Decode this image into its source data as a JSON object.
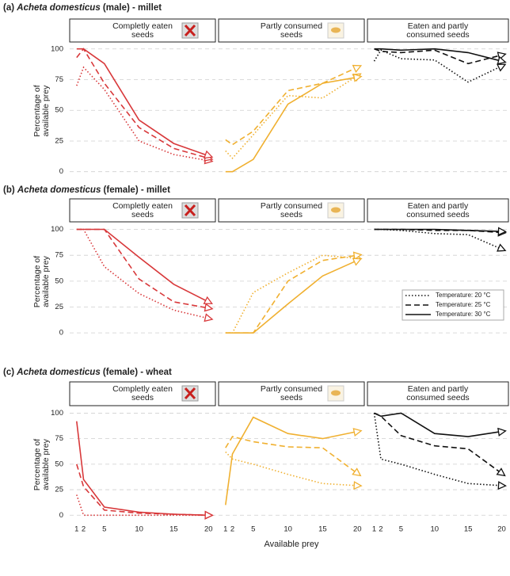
{
  "chart_data": [
    {
      "type": "line",
      "row_title": {
        "label": "(a)",
        "species": "Acheta domesticus",
        "rest": "(male) - millet"
      },
      "ylabel": [
        "Percentage of",
        "available prey"
      ],
      "title": [
        "Completly eaten",
        "seeds"
      ],
      "x": [
        1,
        2,
        5,
        10,
        15,
        20
      ],
      "xlim": [
        0,
        21
      ],
      "ylim": [
        -6,
        105
      ],
      "yticks": [
        0,
        25,
        50,
        75,
        100
      ],
      "ytick_labels": true,
      "grid": true,
      "series": [
        {
          "color": "#d8383a",
          "dash": "dotted",
          "values": [
            70,
            85,
            67,
            25,
            14,
            9
          ]
        },
        {
          "color": "#d8383a",
          "dash": "dashed",
          "values": [
            93,
            100,
            72,
            36,
            19,
            11
          ]
        },
        {
          "color": "#d8383a",
          "dash": "solid",
          "values": [
            100,
            100,
            88,
            42,
            23,
            13
          ]
        }
      ]
    },
    {
      "type": "line",
      "title": [
        "Partly consumed",
        "seeds"
      ],
      "x": [
        1,
        2,
        5,
        10,
        15,
        20
      ],
      "xlim": [
        0,
        21
      ],
      "ylim": [
        -6,
        105
      ],
      "yticks": [
        0,
        25,
        50,
        75,
        100
      ],
      "ytick_labels": false,
      "grid": true,
      "series": [
        {
          "color": "#f0b030",
          "dash": "dotted",
          "values": [
            17,
            11,
            30,
            62,
            60,
            78
          ]
        },
        {
          "color": "#f0b030",
          "dash": "dashed",
          "values": [
            26,
            22,
            33,
            66,
            72,
            85
          ]
        },
        {
          "color": "#f0b030",
          "dash": "solid",
          "values": [
            0,
            0,
            10,
            55,
            72,
            77
          ]
        }
      ]
    },
    {
      "type": "line",
      "title": [
        "Eaten and partly",
        "consumed seeds"
      ],
      "x": [
        1,
        2,
        5,
        10,
        15,
        20
      ],
      "xlim": [
        0,
        21
      ],
      "ylim": [
        -6,
        105
      ],
      "yticks": [
        0,
        25,
        50,
        75,
        100
      ],
      "ytick_labels": false,
      "grid": true,
      "series": [
        {
          "color": "#111111",
          "dash": "dotted",
          "values": [
            90,
            99,
            92,
            91,
            73,
            86
          ]
        },
        {
          "color": "#111111",
          "dash": "dashed",
          "values": [
            100,
            98,
            97,
            99,
            88,
            95
          ]
        },
        {
          "color": "#111111",
          "dash": "solid",
          "values": [
            100,
            100,
            99,
            100,
            97,
            90
          ]
        }
      ]
    },
    {
      "type": "line",
      "row_title": {
        "label": "(b)",
        "species": "Acheta domesticus",
        "rest": "(female) - millet"
      },
      "ylabel": [
        "Percentage of",
        "available prey"
      ],
      "title": [
        "Completly eaten",
        "seeds"
      ],
      "x": [
        1,
        2,
        5,
        10,
        15,
        20
      ],
      "xlim": [
        0,
        21
      ],
      "ylim": [
        -6,
        105
      ],
      "yticks": [
        0,
        25,
        50,
        75,
        100
      ],
      "ytick_labels": true,
      "grid": true,
      "series": [
        {
          "color": "#d8383a",
          "dash": "dotted",
          "values": [
            100,
            100,
            64,
            38,
            22,
            14
          ]
        },
        {
          "color": "#d8383a",
          "dash": "dashed",
          "values": [
            100,
            100,
            100,
            52,
            30,
            24
          ]
        },
        {
          "color": "#d8383a",
          "dash": "solid",
          "values": [
            100,
            100,
            100,
            73,
            47,
            30
          ]
        }
      ]
    },
    {
      "type": "line",
      "title": [
        "Partly consumed",
        "seeds"
      ],
      "x": [
        1,
        2,
        5,
        10,
        15,
        20
      ],
      "xlim": [
        0,
        21
      ],
      "ylim": [
        -6,
        105
      ],
      "yticks": [
        0,
        25,
        50,
        75,
        100
      ],
      "ytick_labels": false,
      "grid": true,
      "series": [
        {
          "color": "#f0b030",
          "dash": "dotted",
          "values": [
            0,
            0,
            39,
            58,
            75,
            72
          ]
        },
        {
          "color": "#f0b030",
          "dash": "dashed",
          "values": [
            0,
            0,
            0,
            50,
            70,
            75
          ]
        },
        {
          "color": "#f0b030",
          "dash": "solid",
          "values": [
            0,
            0,
            0,
            28,
            55,
            70
          ]
        }
      ]
    },
    {
      "type": "line",
      "title": [
        "Eaten and partly",
        "consumed seeds"
      ],
      "x": [
        1,
        2,
        5,
        10,
        15,
        20
      ],
      "xlim": [
        0,
        21
      ],
      "ylim": [
        -6,
        105
      ],
      "yticks": [
        0,
        25,
        50,
        75,
        100
      ],
      "ytick_labels": false,
      "grid": true,
      "legend": "lower right",
      "series": [
        {
          "name": "Temperature: 20 °C",
          "color": "#111111",
          "dash": "dotted",
          "values": [
            100,
            100,
            99,
            96,
            95,
            81
          ]
        },
        {
          "name": "Temperature: 25 °C",
          "color": "#111111",
          "dash": "dashed",
          "values": [
            100,
            100,
            100,
            99,
            99,
            97
          ]
        },
        {
          "name": "Temperature: 30 °C",
          "color": "#111111",
          "dash": "solid",
          "values": [
            100,
            100,
            100,
            100,
            99,
            98
          ]
        }
      ]
    },
    {
      "type": "line",
      "row_title": {
        "label": "(c)",
        "species": "Acheta domesticus",
        "rest": "(female) - wheat"
      },
      "ylabel": [
        "Percentage of",
        "available prey"
      ],
      "title": [
        "Completly eaten",
        "seeds"
      ],
      "x": [
        1,
        2,
        5,
        10,
        15,
        20
      ],
      "xlim": [
        0,
        21
      ],
      "ylim": [
        -6,
        105
      ],
      "yticks": [
        0,
        25,
        50,
        75,
        100
      ],
      "ytick_labels": true,
      "grid": true,
      "xticks": [
        1,
        2,
        5,
        10,
        15,
        20
      ],
      "series": [
        {
          "color": "#d8383a",
          "dash": "dotted",
          "values": [
            20,
            0,
            0,
            0,
            0,
            0
          ]
        },
        {
          "color": "#d8383a",
          "dash": "dashed",
          "values": [
            50,
            28,
            5,
            2,
            1,
            0
          ]
        },
        {
          "color": "#d8383a",
          "dash": "solid",
          "values": [
            92,
            35,
            8,
            3,
            1,
            0
          ]
        }
      ]
    },
    {
      "type": "line",
      "title": [
        "Partly consumed",
        "seeds"
      ],
      "xlabel": "Available prey",
      "x": [
        1,
        2,
        5,
        10,
        15,
        20
      ],
      "xlim": [
        0,
        21
      ],
      "ylim": [
        -6,
        105
      ],
      "yticks": [
        0,
        25,
        50,
        75,
        100
      ],
      "ytick_labels": false,
      "grid": true,
      "xticks": [
        1,
        2,
        5,
        10,
        15,
        20
      ],
      "series": [
        {
          "color": "#f0b030",
          "dash": "dotted",
          "values": [
            62,
            55,
            50,
            40,
            31,
            29
          ]
        },
        {
          "color": "#f0b030",
          "dash": "dashed",
          "values": [
            66,
            77,
            72,
            67,
            66,
            41
          ]
        },
        {
          "color": "#f0b030",
          "dash": "solid",
          "values": [
            10,
            60,
            96,
            80,
            75,
            82
          ]
        }
      ]
    },
    {
      "type": "line",
      "title": [
        "Eaten and partly",
        "consumed seeds"
      ],
      "x": [
        1,
        2,
        5,
        10,
        15,
        20
      ],
      "xlim": [
        0,
        21
      ],
      "ylim": [
        -6,
        105
      ],
      "yticks": [
        0,
        25,
        50,
        75,
        100
      ],
      "ytick_labels": false,
      "grid": true,
      "xticks": [
        1,
        2,
        5,
        10,
        15,
        20
      ],
      "series": [
        {
          "color": "#111111",
          "dash": "dotted",
          "values": [
            100,
            55,
            50,
            40,
            31,
            29
          ]
        },
        {
          "color": "#111111",
          "dash": "dashed",
          "values": [
            100,
            97,
            78,
            68,
            65,
            41
          ]
        },
        {
          "color": "#111111",
          "dash": "solid",
          "values": [
            100,
            97,
            100,
            80,
            77,
            82
          ]
        }
      ]
    }
  ]
}
